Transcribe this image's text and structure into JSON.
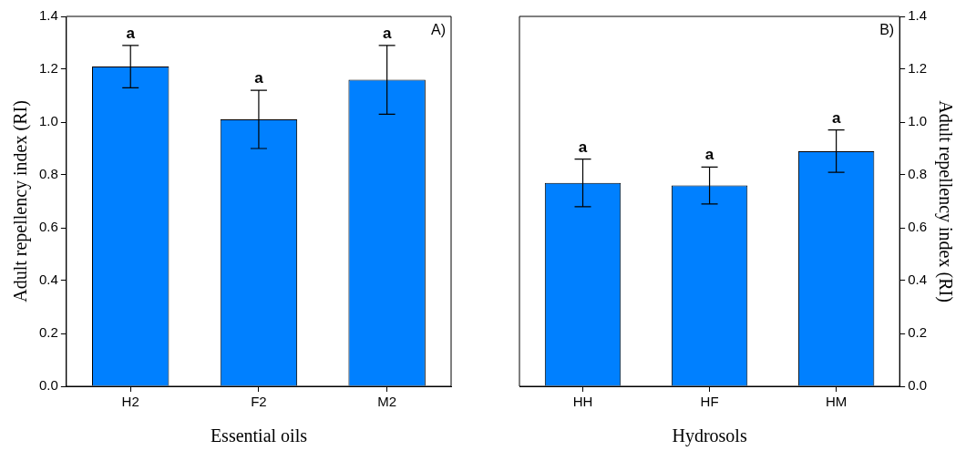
{
  "chart_data": [
    {
      "type": "bar",
      "categories": [
        "H2",
        "F2",
        "M2"
      ],
      "xlabel": "Essential oils",
      "ylabel": "Adult repellency index (RI)",
      "ylim": [
        0,
        1.4
      ],
      "yticks": [
        {
          "value": 0,
          "label": "0.0"
        },
        {
          "value": 0.2,
          "label": "0.2"
        },
        {
          "value": 0.4,
          "label": "0.4"
        },
        {
          "value": 0.6,
          "label": "0.6"
        },
        {
          "value": 0.8,
          "label": "0.8"
        },
        {
          "value": 1,
          "label": "1.0"
        },
        {
          "value": 1.2,
          "label": "1.2"
        },
        {
          "value": 1.4,
          "label": "1.4"
        }
      ],
      "grid": false,
      "legend": false,
      "series": [
        {
          "color": "#0080ff",
          "values": [
            1.21,
            1.01,
            1.16
          ],
          "errors": [
            [
              1.13,
              1.29
            ],
            [
              0.9,
              1.12
            ],
            [
              1.03,
              1.29
            ]
          ]
        }
      ],
      "annotations": [
        {
          "text": "a",
          "x": "H2",
          "y": 1.29
        },
        {
          "text": "a",
          "x": "F2",
          "y": 1.12
        },
        {
          "text": "a",
          "x": "M2",
          "y": 1.29
        },
        "A)"
      ]
    },
    {
      "type": "bar",
      "categories": [
        "HH",
        "HF",
        "HM"
      ],
      "xlabel": "Hydrosols",
      "y2label": "Adult repellency index (RI)",
      "y2lim": [
        0,
        1.4
      ],
      "y2ticks": [
        {
          "value": 0,
          "label": "0.0"
        },
        {
          "value": 0.2,
          "label": "0.2"
        },
        {
          "value": 0.4,
          "label": "0.4"
        },
        {
          "value": 0.6,
          "label": "0.6"
        },
        {
          "value": 0.8,
          "label": "0.8"
        },
        {
          "value": 1,
          "label": "1.0"
        },
        {
          "value": 1.2,
          "label": "1.2"
        },
        {
          "value": 1.4,
          "label": "1.4"
        }
      ],
      "grid": false,
      "legend": false,
      "series": [
        {
          "color": "#0080ff",
          "axis": "y2",
          "values": [
            0.77,
            0.76,
            0.89
          ],
          "errors": [
            [
              0.68,
              0.86
            ],
            [
              0.69,
              0.83
            ],
            [
              0.81,
              0.97
            ]
          ]
        }
      ],
      "annotations": [
        "a",
        "a",
        "a",
        "B)"
      ]
    }
  ]
}
